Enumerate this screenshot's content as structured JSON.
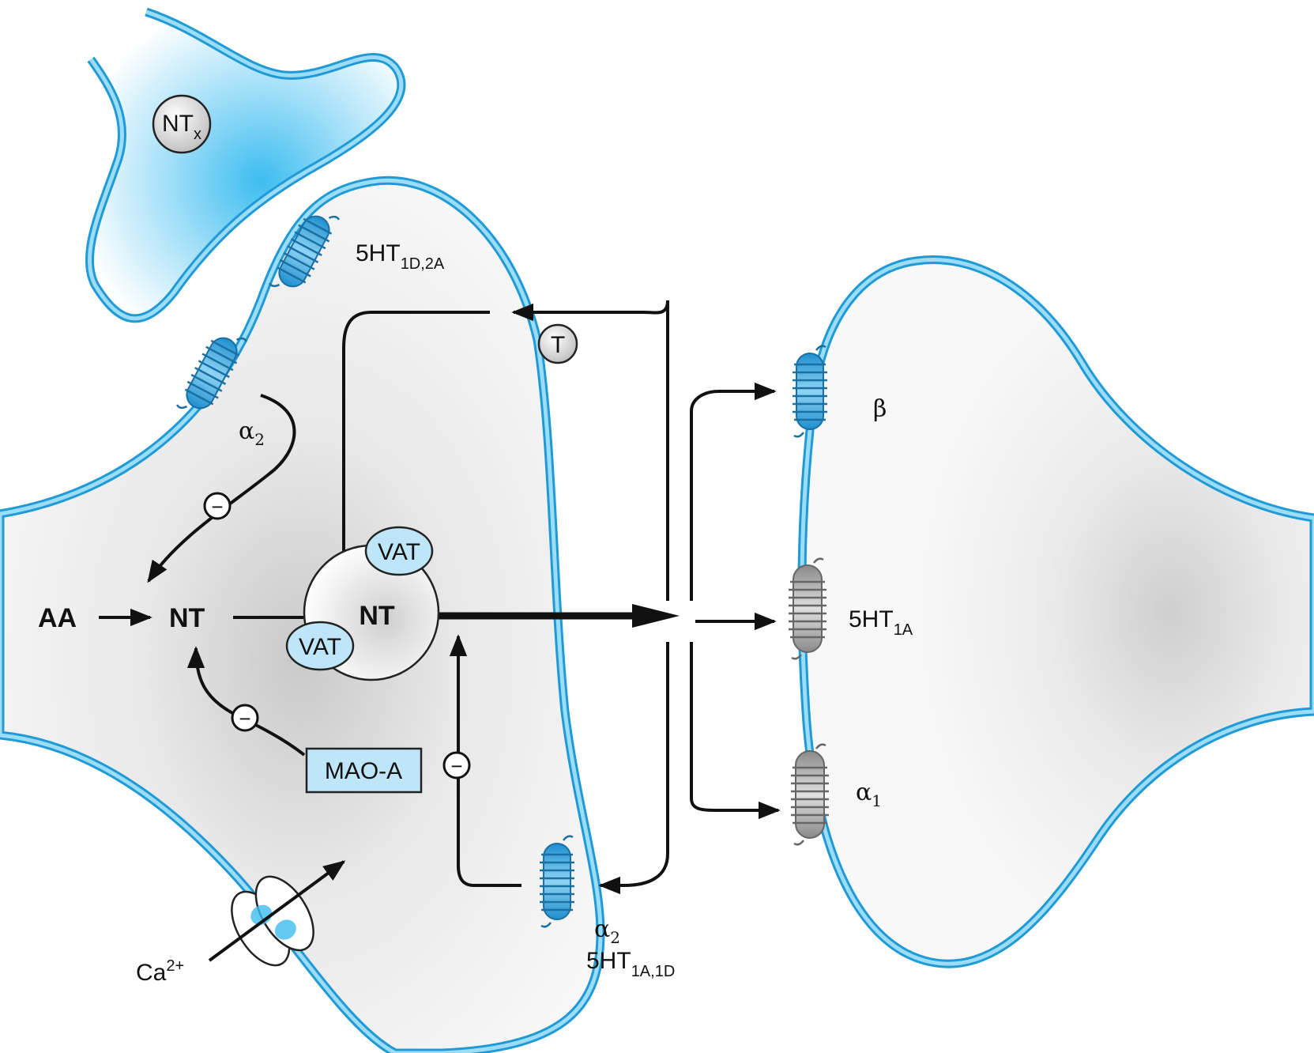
{
  "labels": {
    "ntx_main": "NT",
    "ntx_sub": "x",
    "r_top_main": "5HT",
    "r_top_sub": "1D,2A",
    "alpha2_upper_main": "α",
    "alpha2_upper_sub": "2",
    "transporter": "T",
    "vat_top": "VAT",
    "vat_bottom": "VAT",
    "aa": "AA",
    "nt_cyto": "NT",
    "nt_vesicle": "NT",
    "mao": "MAO-A",
    "ca_main": "Ca",
    "ca_sup": "2+",
    "alpha2_lower_main": "α",
    "alpha2_lower_sub": "2",
    "r_bottom_main": "5HT",
    "r_bottom_sub": "1A,1D",
    "beta": "β",
    "r_post_main": "5HT",
    "r_post_sub": "1A",
    "alpha1_main": "α",
    "alpha1_sub": "1",
    "inhib_symbol": "−"
  },
  "colors": {
    "membrane": "#5bc0eb",
    "membrane_edge": "#1f9ad6",
    "receptor_blue": "#3aaee6",
    "receptor_gray": "#a9a9a9",
    "vat_fill": "#bfe6f8",
    "mao_fill": "#bfe6f8",
    "cell_fill": "#f2f2f2",
    "arrow": "#111111"
  }
}
